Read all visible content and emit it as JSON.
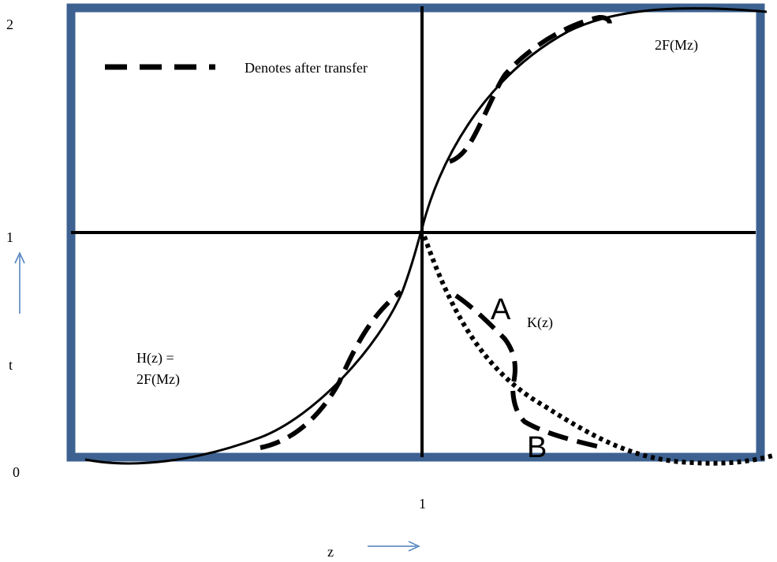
{
  "axis": {
    "y_label": "t",
    "x_label": "z",
    "y_ticks": [
      "2",
      "1",
      "0"
    ],
    "x_tick": "1"
  },
  "legend": {
    "text": "Denotes after transfer"
  },
  "curves": {
    "upper_label": "2F(Mz)",
    "lower_label_line1": "H(z) =",
    "lower_label_line2": "2F(Mz)",
    "k_label": "K(z)",
    "point_a": "A",
    "point_b": "B"
  },
  "colors": {
    "frame": "#3D6291",
    "arrow": "#4A7EBB",
    "ink": "#000000"
  }
}
